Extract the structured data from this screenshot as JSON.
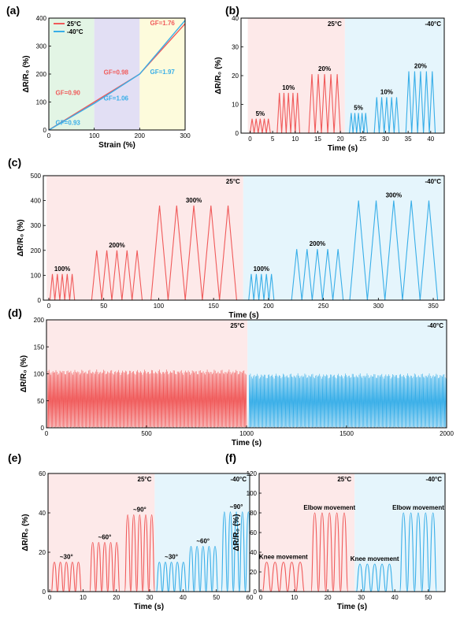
{
  "colors": {
    "red": "#f05a5a",
    "blue": "#38aee8",
    "text": "#000000"
  },
  "chart_data": [
    {
      "id": "a",
      "panel_label": "(a)",
      "type": "line",
      "xlabel": "Strain (%)",
      "ylabel": "ΔR/R₀ (%)",
      "xlim": [
        0,
        300
      ],
      "ylim": [
        0,
        400
      ],
      "xticks": [
        0,
        100,
        200,
        300
      ],
      "yticks": [
        0,
        100,
        200,
        300,
        400
      ],
      "regions": [
        {
          "from": 0,
          "to": 100,
          "color": "#e3f5e5"
        },
        {
          "from": 100,
          "to": 200,
          "color": "#e2dff4"
        },
        {
          "from": 200,
          "to": 300,
          "color": "#fdfbdc"
        }
      ],
      "legend_position": "top-left",
      "series": [
        {
          "name": "25°C",
          "color": "#f05a5a",
          "x": [
            0,
            100,
            200,
            300
          ],
          "y": [
            0,
            100,
            200,
            380
          ]
        },
        {
          "name": "-40°C",
          "color": "#38aee8",
          "x": [
            0,
            100,
            200,
            300
          ],
          "y": [
            0,
            95,
            200,
            392
          ]
        }
      ],
      "annotations": [
        {
          "text": "GF=0.90",
          "x": 42,
          "y": 125,
          "color": "#f05a5a"
        },
        {
          "text": "GF=0.93",
          "x": 42,
          "y": 18,
          "color": "#38aee8"
        },
        {
          "text": "GF=0.98",
          "x": 148,
          "y": 198,
          "color": "#f05a5a"
        },
        {
          "text": "GF=1.06",
          "x": 148,
          "y": 105,
          "color": "#38aee8"
        },
        {
          "text": "GF=1.76",
          "x": 250,
          "y": 375,
          "color": "#f05a5a"
        },
        {
          "text": "GF=1.97",
          "x": 250,
          "y": 200,
          "color": "#38aee8"
        }
      ]
    },
    {
      "id": "b",
      "panel_label": "(b)",
      "type": "line",
      "xlabel": "Time (s)",
      "ylabel": "ΔR/R₀ (%)",
      "xlim": [
        -2,
        43
      ],
      "ylim": [
        0,
        40
      ],
      "xticks": [
        0,
        5,
        10,
        15,
        20,
        25,
        30,
        35,
        40
      ],
      "yticks": [
        0,
        10,
        20,
        30,
        40
      ],
      "regions": [
        {
          "from": -0.5,
          "to": 21,
          "color": "#fde9e9",
          "label": "25°C"
        },
        {
          "from": 21,
          "to": 43,
          "color": "#e5f5fc",
          "label": "-40°C"
        }
      ],
      "pulse_groups": [
        {
          "color": "#f05a5a",
          "start": 0,
          "period": 0.9,
          "count": 5,
          "peak": 5,
          "label": "5%"
        },
        {
          "color": "#f05a5a",
          "start": 6,
          "period": 1.0,
          "count": 5,
          "peak": 14,
          "label": "10%"
        },
        {
          "color": "#f05a5a",
          "start": 13,
          "period": 1.4,
          "count": 5,
          "peak": 20.5,
          "label": "20%"
        },
        {
          "color": "#38aee8",
          "start": 22,
          "period": 0.8,
          "count": 5,
          "peak": 7,
          "label": "5%"
        },
        {
          "color": "#38aee8",
          "start": 27.5,
          "period": 1.1,
          "count": 5,
          "peak": 12.5,
          "label": "10%"
        },
        {
          "color": "#38aee8",
          "start": 34.5,
          "period": 1.3,
          "count": 5,
          "peak": 21.5,
          "label": "20%"
        }
      ]
    },
    {
      "id": "c",
      "panel_label": "(c)",
      "type": "line",
      "xlabel": "Time (s)",
      "ylabel": "ΔR/R₀ (%)",
      "xlim": [
        -5,
        360
      ],
      "ylim": [
        0,
        500
      ],
      "xticks": [
        0,
        50,
        100,
        150,
        200,
        250,
        300,
        350
      ],
      "yticks": [
        0,
        100,
        200,
        300,
        400,
        500
      ],
      "regions": [
        {
          "from": -2,
          "to": 177,
          "color": "#fde9e9",
          "label": "25°C"
        },
        {
          "from": 177,
          "to": 360,
          "color": "#e5f5fc",
          "label": "-40°C"
        }
      ],
      "pulse_groups": [
        {
          "color": "#f05a5a",
          "start": 1,
          "period": 4.5,
          "count": 5,
          "peak": 105,
          "label": "100%"
        },
        {
          "color": "#f05a5a",
          "start": 39,
          "period": 9.2,
          "count": 5,
          "peak": 200,
          "label": "200%"
        },
        {
          "color": "#f05a5a",
          "start": 93,
          "period": 15.6,
          "count": 5,
          "peak": 380,
          "label": "300%"
        },
        {
          "color": "#38aee8",
          "start": 182,
          "period": 4.6,
          "count": 5,
          "peak": 105,
          "label": "100%"
        },
        {
          "color": "#38aee8",
          "start": 221,
          "period": 9.4,
          "count": 5,
          "peak": 205,
          "label": "200%"
        },
        {
          "color": "#38aee8",
          "start": 274,
          "period": 16,
          "count": 5,
          "peak": 400,
          "label": "300%"
        }
      ]
    },
    {
      "id": "d",
      "panel_label": "(d)",
      "type": "line",
      "xlabel": "Time (s)",
      "ylabel": "ΔR/R₀ (%)",
      "xlim": [
        0,
        2000
      ],
      "ylim": [
        0,
        200
      ],
      "xticks": [
        0,
        500,
        1000,
        1500,
        2000
      ],
      "yticks": [
        0,
        50,
        100,
        150,
        200
      ],
      "regions": [
        {
          "from": 0,
          "to": 1005,
          "color": "#fde9e9",
          "label": "25°C"
        },
        {
          "from": 1005,
          "to": 2000,
          "color": "#e5f5fc",
          "label": "-40°C"
        }
      ],
      "dense_segments": [
        {
          "color": "#f05a5a",
          "from": 5,
          "to": 1000,
          "min": 0,
          "max": 107,
          "cycles": 200
        },
        {
          "color": "#38aee8",
          "from": 1012,
          "to": 2000,
          "min": 0,
          "max": 100,
          "cycles": 200
        }
      ]
    },
    {
      "id": "e",
      "panel_label": "(e)",
      "type": "line",
      "xlabel": "Time (s)",
      "ylabel": "ΔR/R₀ (%)",
      "xlim": [
        -0.5,
        60
      ],
      "ylim": [
        0,
        60
      ],
      "xticks": [
        0,
        10,
        20,
        30,
        40,
        50,
        60
      ],
      "yticks": [
        0,
        20,
        40,
        60
      ],
      "regions": [
        {
          "from": -0.5,
          "to": 31.5,
          "color": "#fde9e9",
          "label": "25°C"
        },
        {
          "from": 31.5,
          "to": 60,
          "color": "#e5f5fc",
          "label": "-40°C"
        }
      ],
      "pulse_groups": [
        {
          "color": "#f05a5a",
          "start": 0.5,
          "period": 1.8,
          "count": 5,
          "peak": 15,
          "label": "~30°",
          "shape": "round"
        },
        {
          "color": "#f05a5a",
          "start": 12,
          "period": 1.8,
          "count": 5,
          "peak": 25,
          "label": "~60°",
          "shape": "round"
        },
        {
          "color": "#f05a5a",
          "start": 22.5,
          "period": 1.8,
          "count": 5,
          "peak": 39,
          "label": "~90°",
          "shape": "round"
        },
        {
          "color": "#38aee8",
          "start": 32,
          "period": 1.8,
          "count": 5,
          "peak": 15,
          "label": "~30°",
          "shape": "round"
        },
        {
          "color": "#38aee8",
          "start": 41.5,
          "period": 1.8,
          "count": 5,
          "peak": 23,
          "label": "~60°",
          "shape": "round"
        },
        {
          "color": "#38aee8",
          "start": 51.5,
          "period": 1.8,
          "count": 5,
          "peak": 40.5,
          "label": "~90°",
          "shape": "round"
        }
      ]
    },
    {
      "id": "f",
      "panel_label": "(f)",
      "type": "line",
      "xlabel": "Time (s)",
      "ylabel": "ΔR/R₀ (%)",
      "xlim": [
        -0.5,
        55
      ],
      "ylim": [
        0,
        120
      ],
      "xticks": [
        0,
        10,
        20,
        30,
        40,
        50
      ],
      "yticks": [
        0,
        20,
        40,
        60,
        80,
        100,
        120
      ],
      "regions": [
        {
          "from": -0.5,
          "to": 28,
          "color": "#fde9e9",
          "label": "25°C"
        },
        {
          "from": 28,
          "to": 55,
          "color": "#e5f5fc",
          "label": "-40°C"
        }
      ],
      "pulse_groups": [
        {
          "color": "#f05a5a",
          "start": 0.5,
          "period": 2.5,
          "count": 5,
          "peak": 30,
          "label": "Knee movement",
          "shape": "round"
        },
        {
          "color": "#f05a5a",
          "start": 15,
          "period": 2.2,
          "count": 5,
          "peak": 80,
          "label": "Elbow movement",
          "shape": "round"
        },
        {
          "color": "#38aee8",
          "start": 28.5,
          "period": 2.2,
          "count": 5,
          "peak": 28,
          "label": "Knee movement",
          "shape": "round"
        },
        {
          "color": "#38aee8",
          "start": 41.5,
          "period": 2.2,
          "count": 5,
          "peak": 80,
          "label": "Elbow movement",
          "shape": "round"
        }
      ]
    }
  ]
}
